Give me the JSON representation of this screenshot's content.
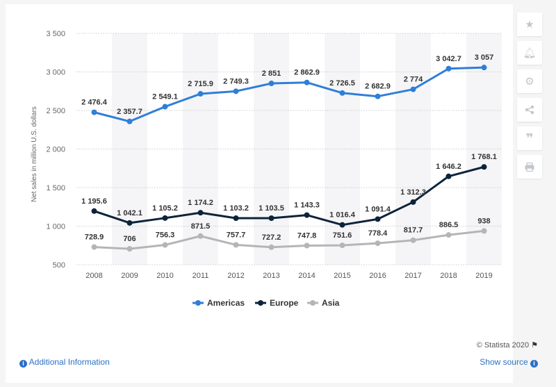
{
  "chart_data": {
    "type": "line",
    "title": "",
    "xlabel": "",
    "ylabel": "Net sales in million U.S. dollars",
    "ylim": [
      500,
      3500
    ],
    "yticks": [
      500,
      1000,
      1500,
      2000,
      2500,
      3000,
      3500
    ],
    "ytick_labels": [
      "500",
      "1 000",
      "1 500",
      "2 000",
      "2 500",
      "3 000",
      "3 500"
    ],
    "categories": [
      "2008",
      "2009",
      "2010",
      "2011",
      "2012",
      "2013",
      "2014",
      "2015",
      "2016",
      "2017",
      "2018",
      "2019"
    ],
    "series": [
      {
        "name": "Americas",
        "color": "#2f7ed8",
        "values": [
          2476.4,
          2357.7,
          2549.1,
          2715.9,
          2749.3,
          2851,
          2862.9,
          2726.5,
          2682.9,
          2774,
          3042.7,
          3057
        ],
        "labels": [
          "2 476.4",
          "2 357.7",
          "2 549.1",
          "2 715.9",
          "2 749.3",
          "2 851",
          "2 862.9",
          "2 726.5",
          "2 682.9",
          "2 774",
          "3 042.7",
          "3 057"
        ]
      },
      {
        "name": "Europe",
        "color": "#0d233a",
        "values": [
          1195.6,
          1042.1,
          1105.2,
          1174.2,
          1103.2,
          1103.5,
          1143.3,
          1016.4,
          1091.4,
          1312.3,
          1646.2,
          1768.1
        ],
        "labels": [
          "1 195.6",
          "1 042.1",
          "1 105.2",
          "1 174.2",
          "1 103.2",
          "1 103.5",
          "1 143.3",
          "1 016.4",
          "1 091.4",
          "1 312.3",
          "1 646.2",
          "1 768.1"
        ]
      },
      {
        "name": "Asia",
        "color": "#b5b5b5",
        "values": [
          728.9,
          706,
          756.3,
          871.5,
          757.7,
          727.2,
          747.8,
          751.6,
          778.4,
          817.7,
          886.5,
          938
        ],
        "labels": [
          "728.9",
          "706",
          "756.3",
          "871.5",
          "757.7",
          "727.2",
          "747.8",
          "751.6",
          "778.4",
          "817.7",
          "886.5",
          "938"
        ]
      }
    ],
    "grid": true,
    "legend": "bottom-center"
  },
  "footer": {
    "additional_info": "Additional Information",
    "show_source": "Show source",
    "credit": "© Statista 2020"
  },
  "toolbar": {
    "icons": [
      "star-icon",
      "bell-icon",
      "gear-icon",
      "share-icon",
      "quote-icon",
      "print-icon"
    ]
  }
}
